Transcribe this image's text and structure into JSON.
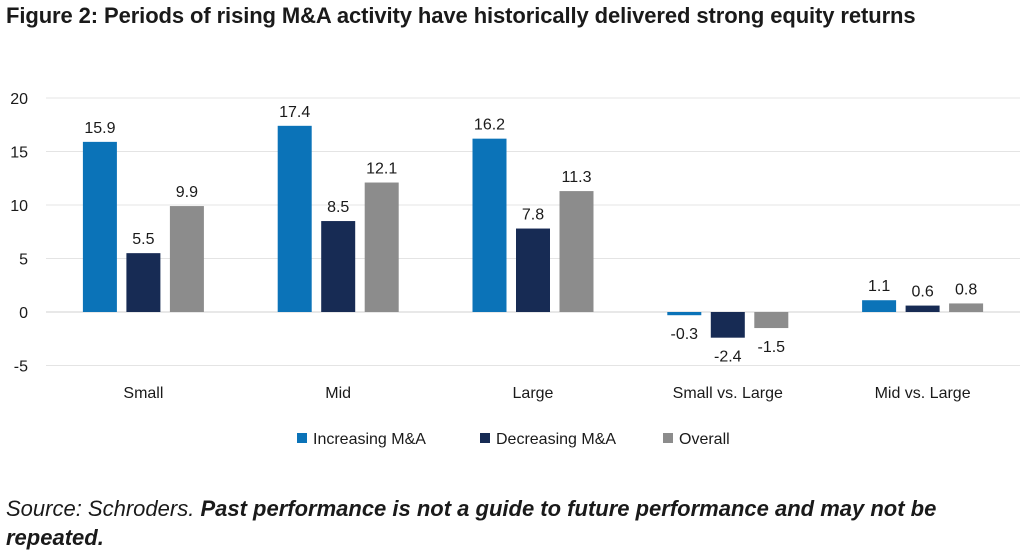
{
  "title": "Figure 2: Periods of rising M&A activity have historically delivered strong equity returns",
  "source_prefix": "Source: Schroders. ",
  "source_bold": "Past performance is not a guide to future performance and may not be repeated.",
  "chart_data": {
    "type": "bar",
    "categories": [
      "Small",
      "Mid",
      "Large",
      "Small vs. Large",
      "Mid vs. Large"
    ],
    "series": [
      {
        "name": "Increasing M&A",
        "values": [
          15.9,
          17.4,
          16.2,
          -0.3,
          1.1
        ],
        "color": "#0b73b8"
      },
      {
        "name": "Decreasing M&A",
        "values": [
          5.5,
          8.5,
          7.8,
          -2.4,
          0.6
        ],
        "color": "#172b54"
      },
      {
        "name": "Overall",
        "values": [
          9.9,
          12.1,
          11.3,
          -1.5,
          0.8
        ],
        "color": "#8c8c8c"
      }
    ],
    "value_labels": [
      [
        "15.9",
        "17.4",
        "16.2",
        "-0.3",
        "1.1"
      ],
      [
        "5.5",
        "8.5",
        "7.8",
        "-2.4",
        "0.6"
      ],
      [
        "9.9",
        "12.1",
        "11.3",
        "-1.5",
        "0.8"
      ]
    ],
    "yticks": [
      "20",
      "15",
      "10",
      "5",
      "0",
      "-5"
    ],
    "ylim": [
      -5,
      20
    ],
    "grid": true,
    "legend_position": "bottom",
    "title": "Figure 2: Periods of rising M&A activity have historically delivered strong equity returns",
    "xlabel": "",
    "ylabel": ""
  }
}
